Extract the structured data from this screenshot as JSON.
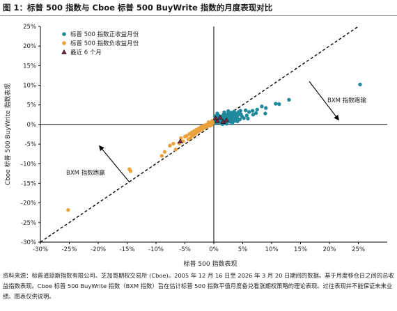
{
  "figure": {
    "title": "图 1：标普 500 指数与 Cboe 标普 500 BuyWrite 指数的月度表现对比",
    "source_note": "资料来源：标普道琼斯指数有限公司、芝加哥期权交易所 (Cboe)。2005 年 12 月 16 日至 2026 年 3 月 20 日期间的数据。基于月度移仓日之间的总收益指数表现。Cboe 标普 500 BuyWrite 指数（BXM 指数）旨在估计标普 500 指数平值月度备兑看涨期权策略的理论表现。过往表现并不能保证未来业绩。图表仅供说明。"
  },
  "colors": {
    "positive": "#1f8a9c",
    "negative": "#e9a23b",
    "recent": "#7a2848",
    "axis": "#000000",
    "diagonal": "#000000"
  },
  "chart_data": {
    "type": "scatter",
    "title": "",
    "xlabel": "标普 500 指数表现",
    "ylabel": "Cboe 标普 500 BuyWrite 指数表现",
    "xlim": [
      -30,
      30
    ],
    "ylim": [
      -30,
      25
    ],
    "x_ticks": [
      "-30%",
      "-25%",
      "-20%",
      "-15%",
      "-10%",
      "-5%",
      "0%",
      "5%",
      "10%",
      "15%",
      "20%",
      "25%"
    ],
    "y_ticks": [
      "25%",
      "20%",
      "15%",
      "10%",
      "5%",
      "0%",
      "-5%",
      "-10%",
      "-15%",
      "-20%",
      "-25%",
      "-30%"
    ],
    "grid": false,
    "legend_position": "top-left",
    "reference_line": {
      "style": "dashed",
      "from": [
        -30,
        -30
      ],
      "to": [
        25,
        25
      ]
    },
    "annotations": [
      {
        "text": "BXM 指数跑输"
      },
      {
        "text": "BXM 指数跑赢"
      }
    ],
    "series": [
      {
        "name": "标普 500 指数正收益月份",
        "marker": "circle",
        "points": [
          [
            25.3,
            10.2
          ],
          [
            13.0,
            6.3
          ],
          [
            10.7,
            5.3
          ],
          [
            11.3,
            5.2
          ],
          [
            9.0,
            4.2
          ],
          [
            8.3,
            4.6
          ],
          [
            7.5,
            3.8
          ],
          [
            6.7,
            3.5
          ],
          [
            8.9,
            2.8
          ],
          [
            7.3,
            2.9
          ],
          [
            6.8,
            2.5
          ],
          [
            6.1,
            3.2
          ],
          [
            5.7,
            2.3
          ],
          [
            5.5,
            3.6
          ],
          [
            5.2,
            1.6
          ],
          [
            4.9,
            2.0
          ],
          [
            4.7,
            2.6
          ],
          [
            4.5,
            1.3
          ],
          [
            4.3,
            3.2
          ],
          [
            4.2,
            2.4
          ],
          [
            4.0,
            1.7
          ],
          [
            3.9,
            0.9
          ],
          [
            3.8,
            2.8
          ],
          [
            3.7,
            1.4
          ],
          [
            3.6,
            2.2
          ],
          [
            3.4,
            0.8
          ],
          [
            3.3,
            1.9
          ],
          [
            3.2,
            2.6
          ],
          [
            3.1,
            1.1
          ],
          [
            3.0,
            3.0
          ],
          [
            2.9,
            1.6
          ],
          [
            2.8,
            0.7
          ],
          [
            2.7,
            2.2
          ],
          [
            2.6,
            1.2
          ],
          [
            2.5,
            2.8
          ],
          [
            2.4,
            1.9
          ],
          [
            2.3,
            0.9
          ],
          [
            2.2,
            1.5
          ],
          [
            2.1,
            2.4
          ],
          [
            2.0,
            0.6
          ],
          [
            1.9,
            1.8
          ],
          [
            1.8,
            1.2
          ],
          [
            1.7,
            2.6
          ],
          [
            1.6,
            0.9
          ],
          [
            1.5,
            1.6
          ],
          [
            1.4,
            2.1
          ],
          [
            1.3,
            0.4
          ],
          [
            1.2,
            1.3
          ],
          [
            1.1,
            1.9
          ],
          [
            1.0,
            0.8
          ],
          [
            0.9,
            1.5
          ],
          [
            0.8,
            2.3
          ],
          [
            0.7,
            0.5
          ],
          [
            0.6,
            1.1
          ],
          [
            0.5,
            1.9
          ],
          [
            0.4,
            0.7
          ],
          [
            0.3,
            1.4
          ],
          [
            0.2,
            2.1
          ],
          [
            0.2,
            0.3
          ],
          [
            0.1,
            1.0
          ],
          [
            3.5,
            3.3
          ],
          [
            4.6,
            3.5
          ],
          [
            5.9,
            1.5
          ],
          [
            2.5,
            3.4
          ],
          [
            1.8,
            3.1
          ],
          [
            0.6,
            2.8
          ],
          [
            3.2,
            0.3
          ],
          [
            4.1,
            0.8
          ],
          [
            2.2,
            0.2
          ],
          [
            1.5,
            0.1
          ]
        ]
      },
      {
        "name": "标普 500 指数负收益月份",
        "marker": "circle",
        "points": [
          [
            -25.2,
            -21.8
          ],
          [
            -14.6,
            -11.4
          ],
          [
            -14.4,
            -11.9
          ],
          [
            -9.0,
            -8.0
          ],
          [
            -8.5,
            -7.0
          ],
          [
            -7.6,
            -5.4
          ],
          [
            -7.0,
            -4.9
          ],
          [
            -6.6,
            -6.4
          ],
          [
            -6.0,
            -4.8
          ],
          [
            -5.7,
            -3.5
          ],
          [
            -5.3,
            -4.3
          ],
          [
            -5.0,
            -3.1
          ],
          [
            -4.7,
            -2.9
          ],
          [
            -4.4,
            -3.8
          ],
          [
            -4.2,
            -2.4
          ],
          [
            -4.0,
            -3.4
          ],
          [
            -3.8,
            -2.0
          ],
          [
            -3.6,
            -2.8
          ],
          [
            -3.4,
            -1.7
          ],
          [
            -3.2,
            -2.4
          ],
          [
            -3.0,
            -1.3
          ],
          [
            -2.8,
            -1.9
          ],
          [
            -2.6,
            -1.0
          ],
          [
            -2.4,
            -1.6
          ],
          [
            -2.2,
            -0.6
          ],
          [
            -2.0,
            -1.2
          ],
          [
            -1.8,
            -0.4
          ],
          [
            -1.6,
            -0.8
          ],
          [
            -1.4,
            -0.1
          ],
          [
            -1.2,
            -0.6
          ],
          [
            -1.0,
            0.1
          ],
          [
            -0.8,
            -0.3
          ],
          [
            -0.6,
            0.3
          ],
          [
            -0.4,
            -0.1
          ],
          [
            -0.2,
            0.4
          ],
          [
            -0.3,
            0.9
          ],
          [
            -1.5,
            -0.2
          ],
          [
            -2.7,
            -1.5
          ],
          [
            -3.9,
            -2.5
          ],
          [
            -0.9,
            0.6
          ]
        ]
      },
      {
        "name": "最近 6 个月",
        "marker": "triangle",
        "points": [
          [
            -5.8,
            -4.3
          ],
          [
            0.3,
            1.6
          ],
          [
            1.1,
            1.8
          ],
          [
            1.6,
            0.7
          ],
          [
            2.2,
            1.1
          ],
          [
            0.6,
            0.9
          ]
        ]
      }
    ]
  }
}
